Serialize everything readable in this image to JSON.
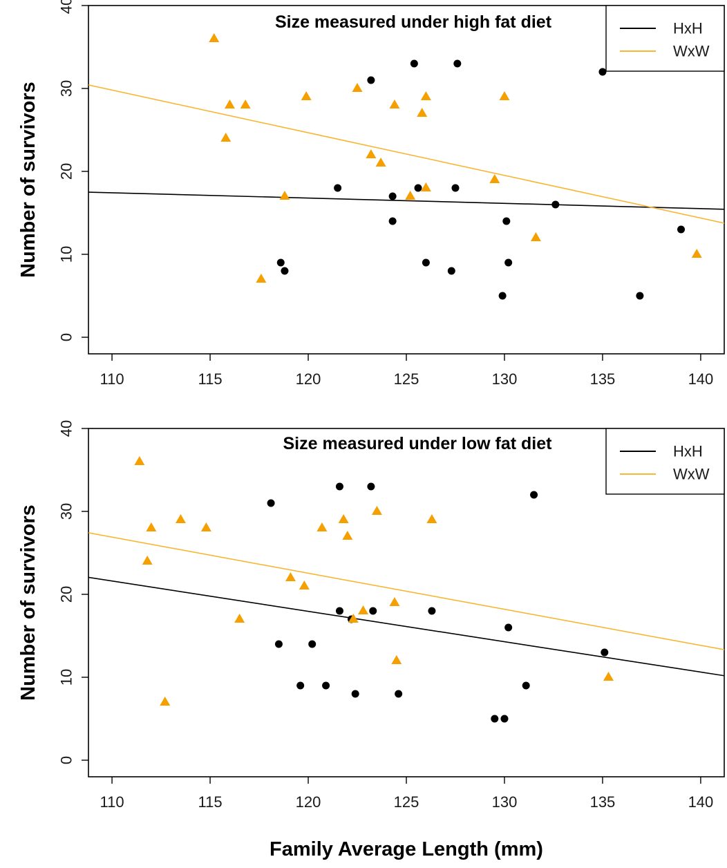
{
  "xlabel": "Family Average Length (mm)",
  "colors": {
    "HxH": "#000000",
    "WxW": "#f5a000",
    "line_WxW": "#f8b632"
  },
  "chart_data": [
    {
      "type": "scatter",
      "title": "Size measured under high fat diet",
      "xlabel": "Family Average Length (mm)",
      "ylabel": "Number of survivors",
      "xlim": [
        108.8,
        141.2
      ],
      "ylim": [
        -2,
        40
      ],
      "xticks": [
        110,
        115,
        120,
        125,
        130,
        135,
        140
      ],
      "yticks": [
        0,
        10,
        20,
        30,
        40
      ],
      "legend_position": "top-right",
      "series": [
        {
          "name": "HxH",
          "marker": "circle",
          "color": "#000000",
          "points": [
            [
              118.6,
              9
            ],
            [
              118.8,
              8
            ],
            [
              121.5,
              18
            ],
            [
              123.2,
              31
            ],
            [
              124.3,
              17
            ],
            [
              124.3,
              14
            ],
            [
              125.4,
              33
            ],
            [
              125.6,
              18
            ],
            [
              126.0,
              9
            ],
            [
              127.3,
              8
            ],
            [
              127.5,
              18
            ],
            [
              127.6,
              33
            ],
            [
              129.9,
              5
            ],
            [
              130.1,
              14
            ],
            [
              130.2,
              9
            ],
            [
              132.6,
              16
            ],
            [
              135.0,
              32
            ],
            [
              136.9,
              5
            ],
            [
              139.0,
              13
            ]
          ],
          "fit": {
            "intercept": 24.44,
            "slope": -0.0638
          }
        },
        {
          "name": "WxW",
          "marker": "triangle",
          "color": "#f5a000",
          "points": [
            [
              115.2,
              36
            ],
            [
              115.8,
              24
            ],
            [
              116.0,
              28
            ],
            [
              116.8,
              28
            ],
            [
              117.6,
              7
            ],
            [
              118.8,
              17
            ],
            [
              119.9,
              29
            ],
            [
              122.5,
              30
            ],
            [
              123.2,
              22
            ],
            [
              123.7,
              21
            ],
            [
              124.4,
              28
            ],
            [
              125.2,
              17
            ],
            [
              125.8,
              27
            ],
            [
              126.0,
              29
            ],
            [
              126.0,
              18
            ],
            [
              129.5,
              19
            ],
            [
              130.0,
              29
            ],
            [
              131.6,
              12
            ],
            [
              139.8,
              10
            ]
          ],
          "fit": {
            "intercept": 86.39,
            "slope": -0.5144
          }
        }
      ]
    },
    {
      "type": "scatter",
      "title": "Size measured under low fat diet",
      "xlabel": "Family Average Length (mm)",
      "ylabel": "Number of survivors",
      "xlim": [
        108.8,
        141.2
      ],
      "ylim": [
        -2,
        40
      ],
      "xticks": [
        110,
        115,
        120,
        125,
        130,
        135,
        140
      ],
      "yticks": [
        0,
        10,
        20,
        30,
        40
      ],
      "legend_position": "top-right",
      "series": [
        {
          "name": "HxH",
          "marker": "circle",
          "color": "#000000",
          "points": [
            [
              118.1,
              31
            ],
            [
              118.5,
              14
            ],
            [
              119.6,
              9
            ],
            [
              120.2,
              14
            ],
            [
              120.9,
              9
            ],
            [
              121.6,
              18
            ],
            [
              121.6,
              33
            ],
            [
              122.2,
              17
            ],
            [
              122.4,
              8
            ],
            [
              123.2,
              33
            ],
            [
              123.3,
              18
            ],
            [
              124.6,
              8
            ],
            [
              126.3,
              18
            ],
            [
              129.5,
              5
            ],
            [
              130.0,
              5
            ],
            [
              130.2,
              16
            ],
            [
              131.1,
              9
            ],
            [
              131.5,
              32
            ],
            [
              135.1,
              13
            ]
          ],
          "fit": {
            "intercept": 61.88,
            "slope": -0.3661
          }
        },
        {
          "name": "WxW",
          "marker": "triangle",
          "color": "#f5a000",
          "points": [
            [
              111.4,
              36
            ],
            [
              111.8,
              24
            ],
            [
              112.0,
              28
            ],
            [
              112.7,
              7
            ],
            [
              113.5,
              29
            ],
            [
              114.8,
              28
            ],
            [
              116.5,
              17
            ],
            [
              119.1,
              22
            ],
            [
              119.8,
              21
            ],
            [
              120.7,
              28
            ],
            [
              121.8,
              29
            ],
            [
              122.0,
              27
            ],
            [
              122.3,
              17
            ],
            [
              122.8,
              18
            ],
            [
              123.5,
              30
            ],
            [
              124.4,
              19
            ],
            [
              124.5,
              12
            ],
            [
              126.3,
              29
            ],
            [
              135.3,
              10
            ]
          ],
          "fit": {
            "intercept": 74.76,
            "slope": -0.4351
          }
        }
      ]
    }
  ]
}
